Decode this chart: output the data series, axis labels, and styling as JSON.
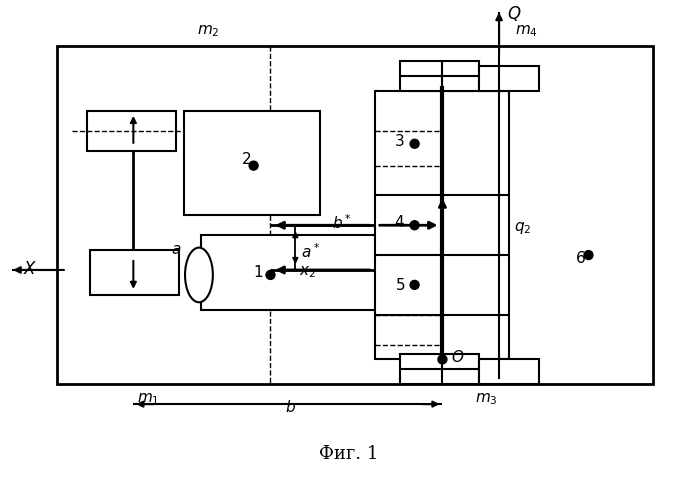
{
  "figsize": [
    6.99,
    4.88
  ],
  "dpi": 100,
  "bg_color": "white"
}
